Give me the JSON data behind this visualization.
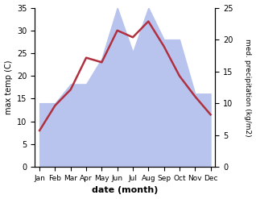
{
  "months": [
    "Jan",
    "Feb",
    "Mar",
    "Apr",
    "May",
    "Jun",
    "Jul",
    "Aug",
    "Sep",
    "Oct",
    "Nov",
    "Dec"
  ],
  "temperature": [
    8,
    13.5,
    17,
    24,
    23,
    30,
    28.5,
    32,
    26.5,
    20,
    15.5,
    11.5
  ],
  "precipitation": [
    10,
    10,
    13,
    13,
    17,
    25,
    18,
    25,
    20,
    20,
    11.5,
    11.5
  ],
  "temp_color": "#b03040",
  "precip_fill_color": "#b8c4ee",
  "left_ylim": [
    0,
    35
  ],
  "right_ylim": [
    0,
    25
  ],
  "left_yticks": [
    0,
    5,
    10,
    15,
    20,
    25,
    30,
    35
  ],
  "right_yticks": [
    0,
    5,
    10,
    15,
    20,
    25
  ],
  "xlabel": "date (month)",
  "ylabel_left": "max temp (C)",
  "ylabel_right": "med. precipitation (kg/m2)",
  "background_color": "#ffffff",
  "line_width": 1.8
}
